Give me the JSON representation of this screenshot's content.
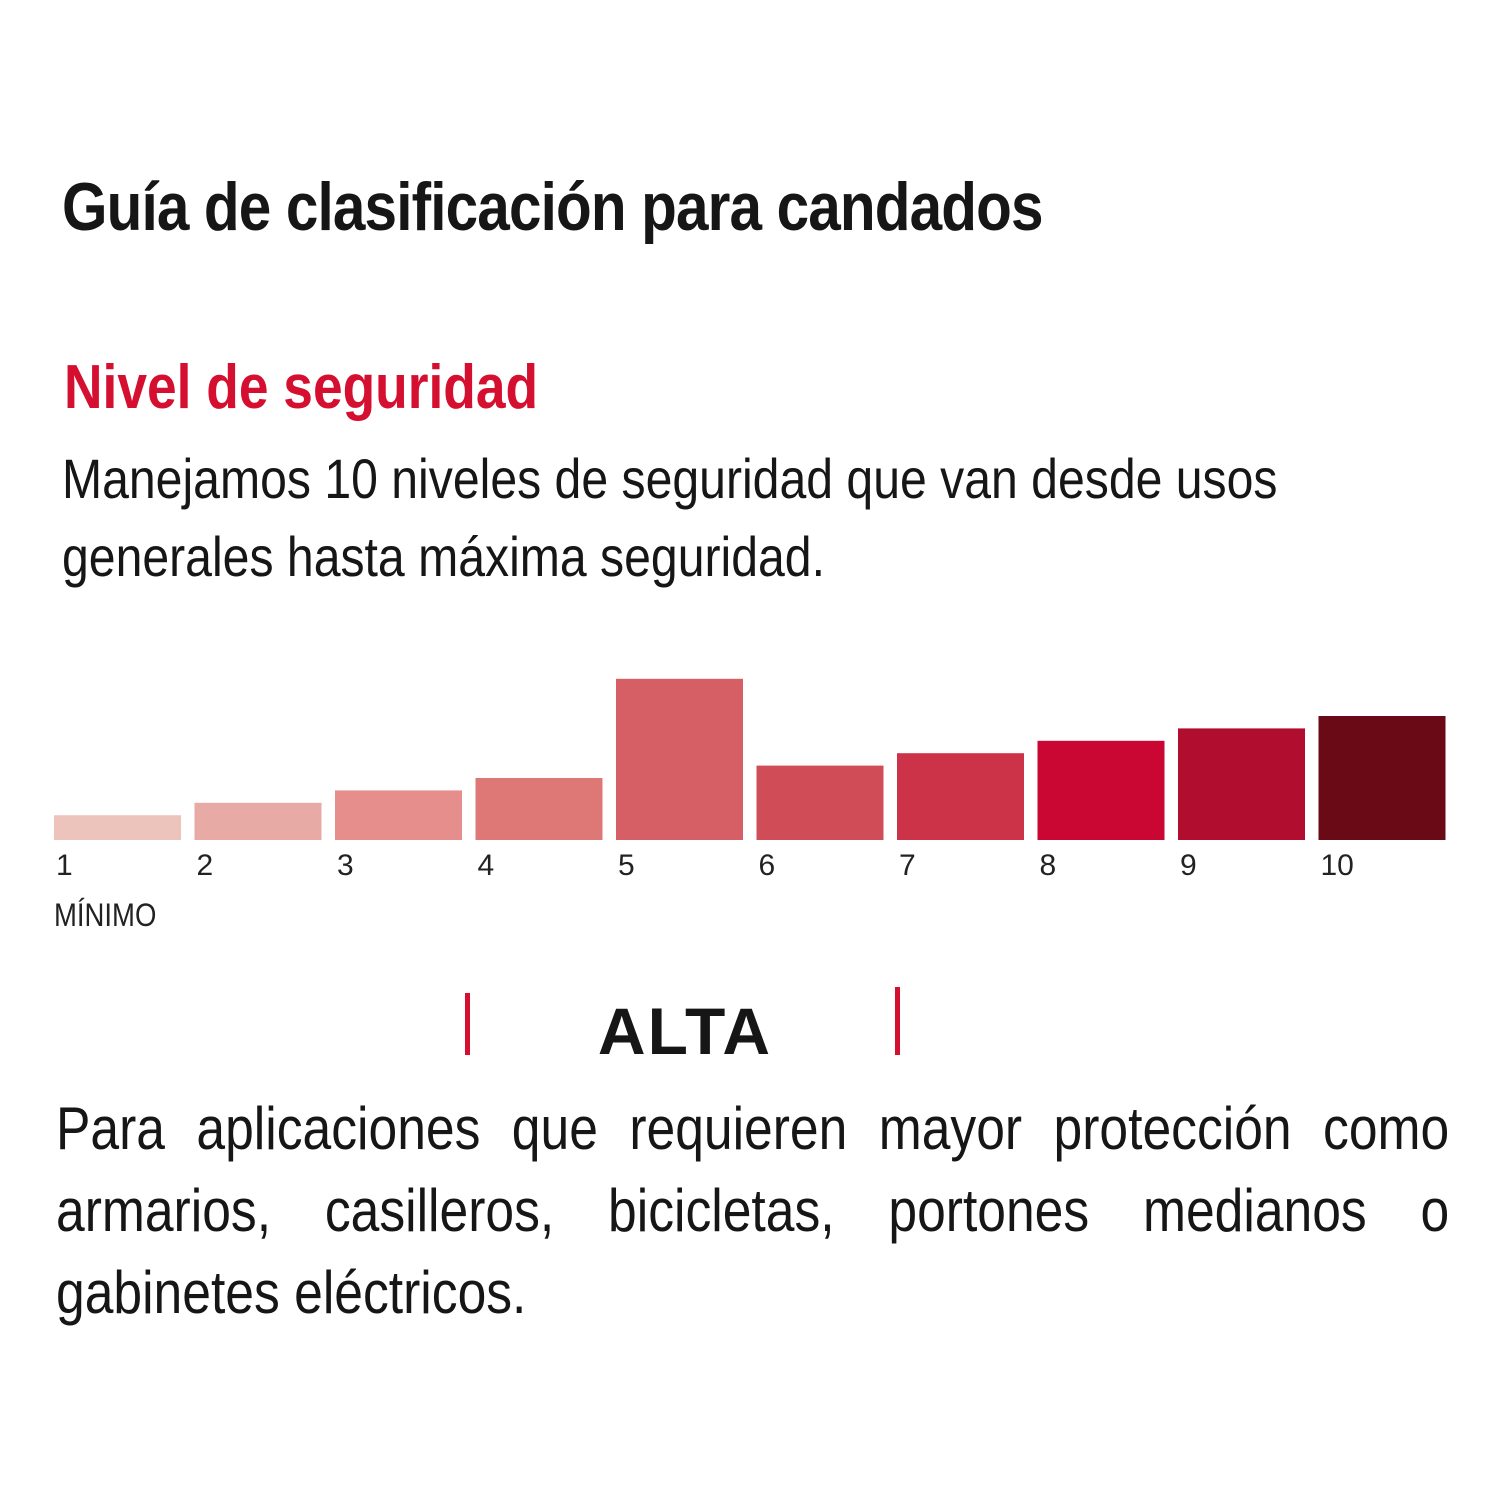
{
  "header": {
    "title": "Guía de clasificación para candados"
  },
  "section": {
    "title": "Nivel de seguridad",
    "intro": "Manejamos 10 niveles de seguridad que van desde usos generales hasta máxima seguridad."
  },
  "chart_data": {
    "type": "bar",
    "categories": [
      "1",
      "2",
      "3",
      "4",
      "5",
      "6",
      "7",
      "8",
      "9",
      "10"
    ],
    "values": [
      2,
      3,
      4,
      5,
      13,
      6,
      7,
      8,
      9,
      10
    ],
    "colors": [
      "#ecc4bc",
      "#e8aaa5",
      "#e58e8b",
      "#de7877",
      "#d55f64",
      "#d04c56",
      "#cd3348",
      "#ca0633",
      "#b00d2f",
      "#6a0a17"
    ],
    "highlighted_level": "5",
    "min_label": "MÍNIMO"
  },
  "level": {
    "name": "ALTA",
    "accent_color": "#d50f2f",
    "description": "Para aplicaciones que requieren mayor protección como armarios, casilleros, bicicletas, portones medianos o gabinetes eléctricos."
  }
}
